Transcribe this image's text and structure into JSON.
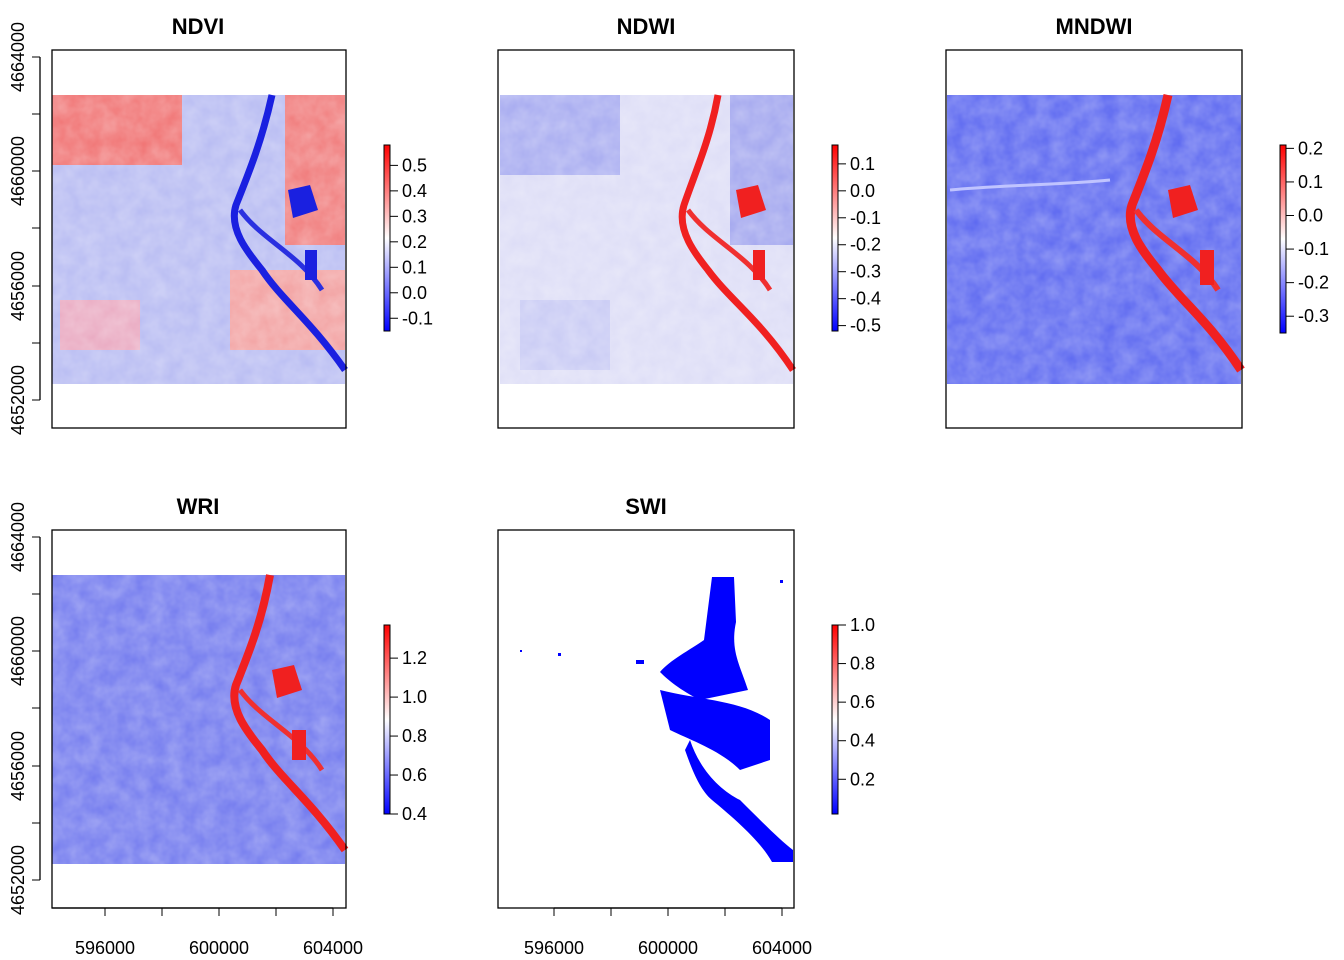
{
  "chart_data": [
    {
      "type": "heatmap",
      "title": "NDVI",
      "colorbar": {
        "min": -0.15,
        "max": 0.58,
        "ticks": [
          -0.1,
          0.0,
          0.1,
          0.2,
          0.3,
          0.4,
          0.5
        ],
        "tick_labels": [
          "-0.1",
          "0.0",
          "0.1",
          "0.2",
          "0.3",
          "0.4",
          "0.5"
        ]
      },
      "y_ticks": [
        4652000,
        4656000,
        4660000,
        4664000
      ],
      "y_tick_labels": [
        "4652000",
        "4656000",
        "4660000",
        "4664000"
      ],
      "x_ticks": [],
      "x_tick_labels": []
    },
    {
      "type": "heatmap",
      "title": "NDWI",
      "colorbar": {
        "min": -0.52,
        "max": 0.17,
        "ticks": [
          -0.5,
          -0.4,
          -0.3,
          -0.2,
          -0.1,
          0.0,
          0.1
        ],
        "tick_labels": [
          "-0.5",
          "-0.4",
          "-0.3",
          "-0.2",
          "-0.1",
          "0.0",
          "0.1"
        ]
      },
      "y_ticks": [],
      "y_tick_labels": [],
      "x_ticks": [],
      "x_tick_labels": []
    },
    {
      "type": "heatmap",
      "title": "MNDWI",
      "colorbar": {
        "min": -0.35,
        "max": 0.21,
        "ticks": [
          -0.3,
          -0.2,
          -0.1,
          0.0,
          0.1,
          0.2
        ],
        "tick_labels": [
          "-0.3",
          "-0.2",
          "-0.1",
          "0.0",
          "0.1",
          "0.2"
        ]
      },
      "y_ticks": [],
      "y_tick_labels": [],
      "x_ticks": [],
      "x_tick_labels": []
    },
    {
      "type": "heatmap",
      "title": "WRI",
      "colorbar": {
        "min": 0.4,
        "max": 1.37,
        "ticks": [
          0.4,
          0.6,
          0.8,
          1.0,
          1.2
        ],
        "tick_labels": [
          "0.4",
          "0.6",
          "0.8",
          "1.0",
          "1.2"
        ]
      },
      "y_ticks": [
        4652000,
        4656000,
        4660000,
        4664000
      ],
      "y_tick_labels": [
        "4652000",
        "4656000",
        "4660000",
        "4664000"
      ],
      "x_ticks": [
        596000,
        600000,
        604000
      ],
      "x_tick_labels": [
        "596000",
        "600000",
        "604000"
      ]
    },
    {
      "type": "heatmap",
      "title": "SWI",
      "colorbar": {
        "min": 0.02,
        "max": 1.0,
        "ticks": [
          0.2,
          0.4,
          0.6,
          0.8,
          1.0
        ],
        "tick_labels": [
          "0.2",
          "0.4",
          "0.6",
          "0.8",
          "1.0"
        ]
      },
      "y_ticks": [],
      "y_tick_labels": [],
      "x_ticks": [
        596000,
        600000,
        604000
      ],
      "x_tick_labels": [
        "596000",
        "600000",
        "604000"
      ]
    }
  ],
  "colors": {
    "low": "#0000ff",
    "mid": "#ffffff",
    "high": "#ff0000",
    "frame": "#000000"
  }
}
